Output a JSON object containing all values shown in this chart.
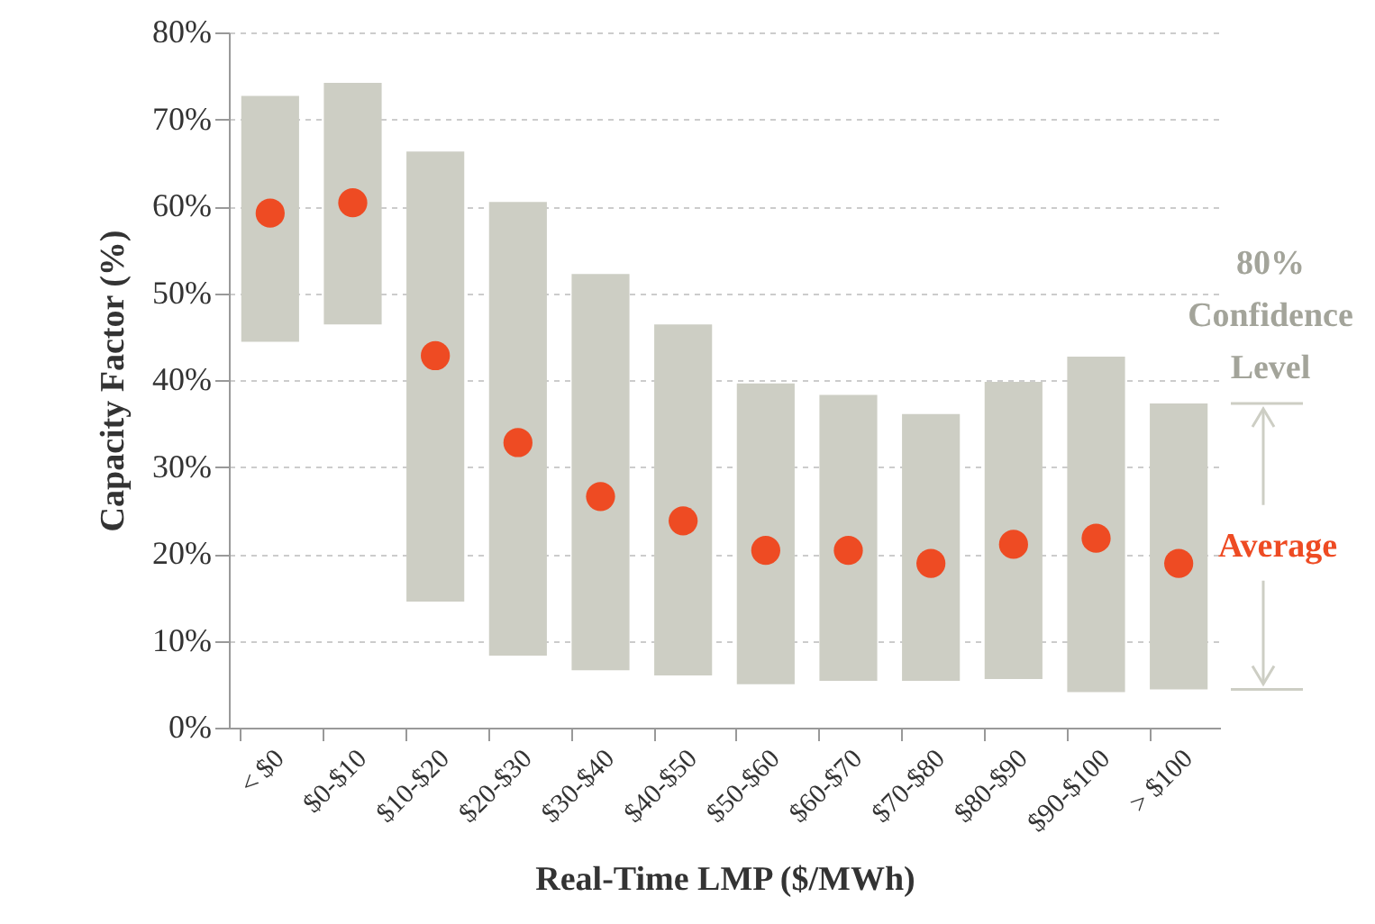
{
  "chart_data": {
    "type": "bar",
    "xlabel": "Real-Time  LMP ($/MWh)",
    "ylabel": "Capacity Factor (%)",
    "categories": [
      "< $0",
      "$0-$10",
      "$10-$20",
      "$20-$30",
      "$30-$40",
      "$40-$50",
      "$50-$60",
      "$60-$70",
      "$70-$80",
      "$80-$90",
      "$90-$100",
      "> $100"
    ],
    "series": [
      {
        "name": "80% Confidence Level",
        "color": "#cdcec4",
        "base": [
          44.4,
          46.4,
          14.5,
          8.3,
          6.6,
          6.0,
          5.0,
          5.4,
          5.4,
          5.6,
          4.1,
          4.4
        ],
        "values": [
          28.3,
          27.8,
          51.8,
          52.2,
          45.6,
          40.4,
          34.6,
          32.9,
          30.7,
          34.2,
          38.6,
          32.9
        ]
      },
      {
        "name": "Average",
        "type": "scatter",
        "color": "#ee4b23",
        "values": [
          59.2,
          60.4,
          42.8,
          32.8,
          26.6,
          23.8,
          20.4,
          20.4,
          18.9,
          21.1,
          21.8,
          18.9
        ]
      }
    ],
    "ylim": [
      0,
      80
    ],
    "yticks": [
      {
        "value": 0,
        "label": "0%"
      },
      {
        "value": 10,
        "label": "10%"
      },
      {
        "value": 20,
        "label": "20%"
      },
      {
        "value": 30,
        "label": "30%"
      },
      {
        "value": 40,
        "label": "40%"
      },
      {
        "value": 50,
        "label": "50%"
      },
      {
        "value": 60,
        "label": "60%"
      },
      {
        "value": 70,
        "label": "70%"
      },
      {
        "value": 80,
        "label": "80%"
      }
    ],
    "grid": "y",
    "legend": "right",
    "marker": "circle"
  }
}
